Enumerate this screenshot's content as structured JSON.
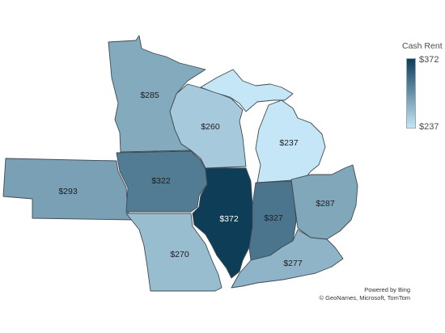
{
  "legend": {
    "title": "Cash Rent",
    "max_label": "$372",
    "min_label": "$237",
    "max_value": 372,
    "min_value": 237,
    "color_low": "#c5e6f6",
    "color_high": "#0e3d58"
  },
  "states": [
    {
      "key": "minnesota",
      "label": "$285",
      "value": 285
    },
    {
      "key": "wisconsin",
      "label": "$260",
      "value": 260
    },
    {
      "key": "michigan",
      "label": "$237",
      "value": 237
    },
    {
      "key": "nebraska",
      "label": "$293",
      "value": 293
    },
    {
      "key": "iowa",
      "label": "$322",
      "value": 322
    },
    {
      "key": "illinois",
      "label": "$372",
      "value": 372
    },
    {
      "key": "indiana",
      "label": "$327",
      "value": 327
    },
    {
      "key": "ohio",
      "label": "$287",
      "value": 287
    },
    {
      "key": "missouri",
      "label": "$270",
      "value": 270
    },
    {
      "key": "kentucky",
      "label": "$277",
      "value": 277
    }
  ],
  "attribution": {
    "line1": "Powered by Bing",
    "line2": "© GeoNames, Microsoft, TomTom"
  }
}
